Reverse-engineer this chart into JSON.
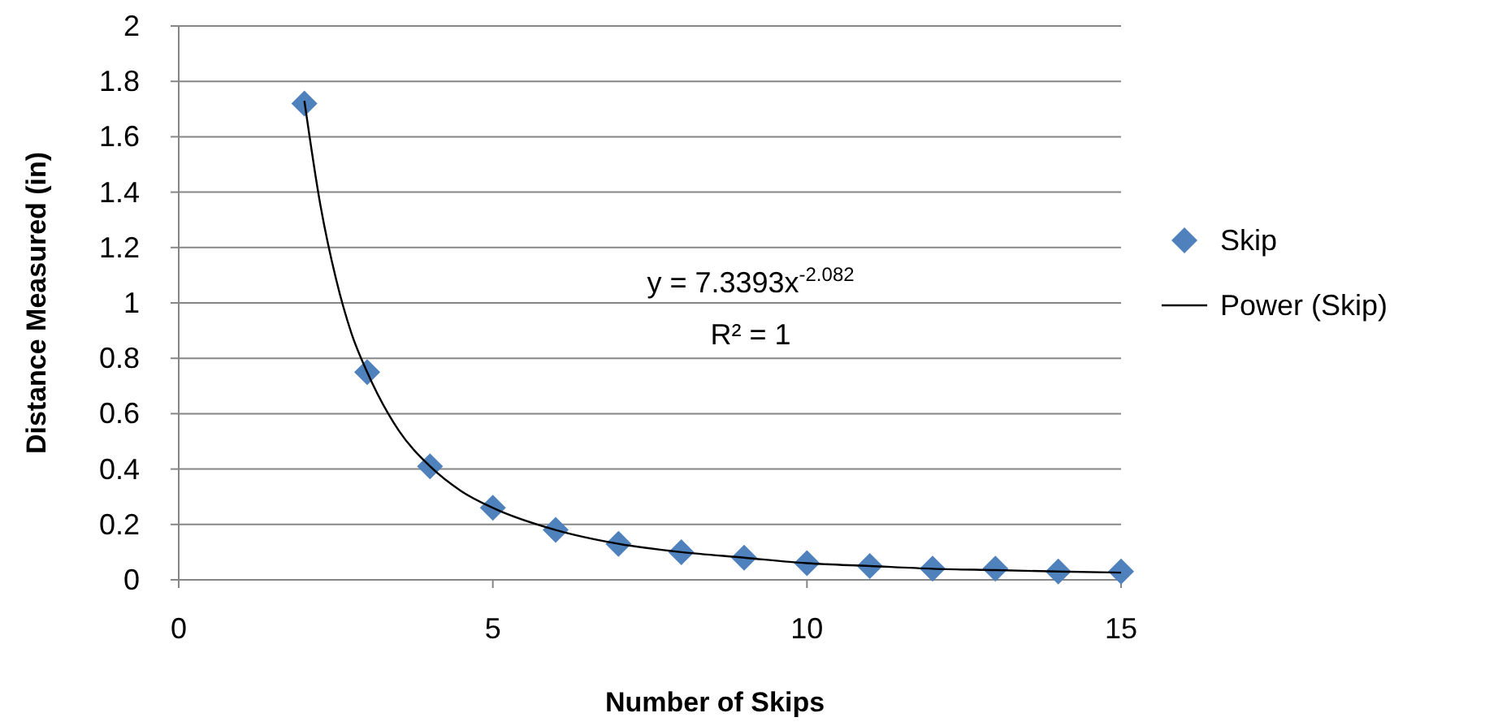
{
  "chart_data": {
    "type": "scatter",
    "xlabel": "Number of Skips",
    "ylabel": "Distance Measured (in)",
    "x": [
      2,
      3,
      4,
      5,
      6,
      7,
      8,
      9,
      10,
      11,
      12,
      13,
      14,
      15
    ],
    "series": [
      {
        "name": "Skip",
        "color": "#4f81bd",
        "marker": "diamond",
        "values": [
          1.72,
          0.75,
          0.41,
          0.26,
          0.18,
          0.13,
          0.1,
          0.08,
          0.06,
          0.05,
          0.04,
          0.04,
          0.03,
          0.03
        ]
      },
      {
        "name": "Power (Skip)",
        "type": "line",
        "color": "#000000",
        "marker": "none",
        "line_style": "solid",
        "x": [
          2,
          2.25,
          2.5,
          2.75,
          3,
          3.5,
          4,
          4.5,
          5,
          6,
          7,
          8,
          9,
          10,
          11,
          12,
          13,
          14,
          15
        ],
        "values": [
          1.73,
          1.36,
          1.09,
          0.89,
          0.75,
          0.54,
          0.41,
          0.32,
          0.26,
          0.18,
          0.13,
          0.1,
          0.08,
          0.06,
          0.05,
          0.04,
          0.035,
          0.03,
          0.026
        ]
      }
    ],
    "annotations": [
      "y = 7.3393x$^{-2.082}$",
      "R² = 1"
    ],
    "xlim": [
      0,
      15
    ],
    "xticks": [
      0,
      5,
      10,
      15
    ],
    "ylim": [
      0,
      2
    ],
    "yticks": [
      0,
      0.2,
      0.4,
      0.6,
      0.8,
      1,
      1.2,
      1.4,
      1.6,
      1.8,
      2
    ],
    "grid": "y",
    "legend": "right"
  }
}
